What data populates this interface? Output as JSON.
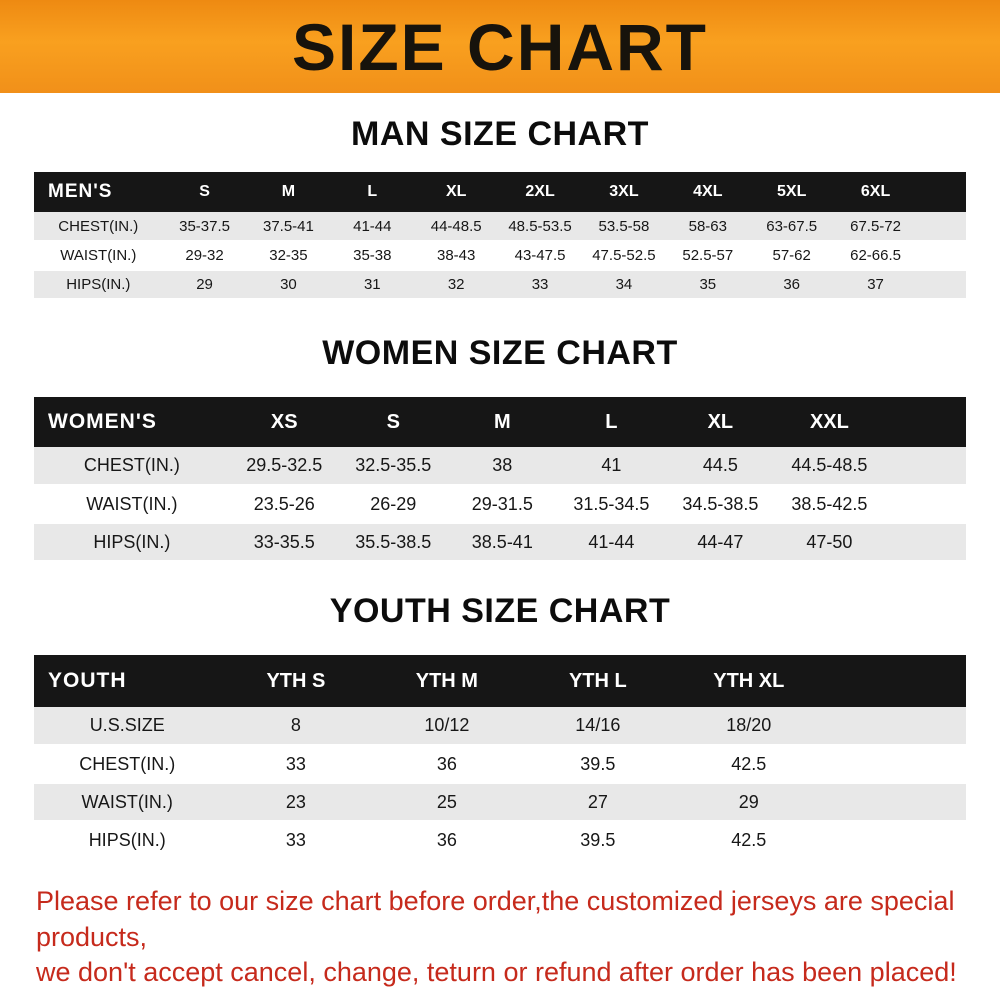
{
  "banner": {
    "title": "SIZE CHART",
    "bg_color": "#f7941d",
    "title_color": "#17130c"
  },
  "sections": [
    {
      "id": "men",
      "heading": "MAN SIZE CHART",
      "table": {
        "header": [
          "MEN'S",
          "S",
          "M",
          "L",
          "XL",
          "2XL",
          "3XL",
          "4XL",
          "5XL",
          "6XL"
        ],
        "rows": [
          [
            "CHEST(IN.)",
            "35-37.5",
            "37.5-41",
            "41-44",
            "44-48.5",
            "48.5-53.5",
            "53.5-58",
            "58-63",
            "63-67.5",
            "67.5-72"
          ],
          [
            "WAIST(IN.)",
            "29-32",
            "32-35",
            "35-38",
            "38-43",
            "43-47.5",
            "47.5-52.5",
            "52.5-57",
            "57-62",
            "62-66.5"
          ],
          [
            "HIPS(IN.)",
            "29",
            "30",
            "31",
            "32",
            "33",
            "34",
            "35",
            "36",
            "37"
          ]
        ]
      }
    },
    {
      "id": "women",
      "heading": "WOMEN SIZE CHART",
      "table": {
        "header": [
          "WOMEN'S",
          "XS",
          "S",
          "M",
          "L",
          "XL",
          "XXL"
        ],
        "rows": [
          [
            "CHEST(IN.)",
            "29.5-32.5",
            "32.5-35.5",
            "38",
            "41",
            "44.5",
            "44.5-48.5"
          ],
          [
            "WAIST(IN.)",
            "23.5-26",
            "26-29",
            "29-31.5",
            "31.5-34.5",
            "34.5-38.5",
            "38.5-42.5"
          ],
          [
            "HIPS(IN.)",
            "33-35.5",
            "35.5-38.5",
            "38.5-41",
            "41-44",
            "44-47",
            "47-50"
          ]
        ]
      }
    },
    {
      "id": "youth",
      "heading": "YOUTH SIZE CHART",
      "table": {
        "header": [
          "YOUTH",
          "YTH S",
          "YTH M",
          "YTH L",
          "YTH XL"
        ],
        "rows": [
          [
            "U.S.SIZE",
            "8",
            "10/12",
            "14/16",
            "18/20"
          ],
          [
            "CHEST(IN.)",
            "33",
            "36",
            "39.5",
            "42.5"
          ],
          [
            "WAIST(IN.)",
            "23",
            "25",
            "27",
            "29"
          ],
          [
            "HIPS(IN.)",
            "33",
            "36",
            "39.5",
            "42.5"
          ]
        ]
      }
    }
  ],
  "footer": {
    "text_color": "#c62a1c",
    "lines": [
      "Please refer to our size chart before order,the customized jerseys are special products,",
      "we don't accept cancel, change, teturn or refund after order has been placed!"
    ]
  }
}
